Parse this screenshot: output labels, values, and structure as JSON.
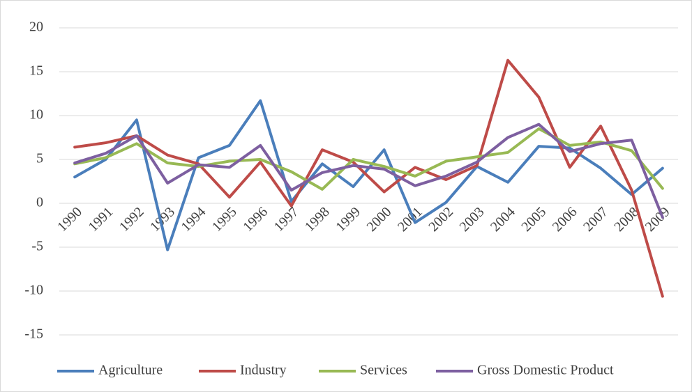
{
  "chart_data": {
    "type": "line",
    "categories": [
      "1990",
      "1991",
      "1992",
      "1993",
      "1994",
      "1995",
      "1996",
      "1997",
      "1998",
      "1999",
      "2000",
      "2001",
      "2002",
      "2003",
      "2004",
      "2005",
      "2006",
      "2007",
      "2008",
      "2009"
    ],
    "series": [
      {
        "name": "Agriculture",
        "color": "#4a7ebb",
        "values": [
          3.0,
          5.0,
          9.5,
          -5.3,
          5.2,
          6.6,
          11.7,
          0.2,
          4.5,
          1.9,
          6.1,
          -2.2,
          0.1,
          4.2,
          2.4,
          6.5,
          6.3,
          4.0,
          1.0,
          4.0
        ]
      },
      {
        "name": "Industry",
        "color": "#be4b48",
        "values": [
          6.4,
          6.9,
          7.7,
          5.5,
          4.5,
          0.7,
          4.7,
          -0.3,
          6.1,
          4.7,
          1.3,
          4.1,
          2.7,
          4.3,
          16.3,
          12.1,
          4.1,
          8.8,
          1.5,
          -10.6
        ]
      },
      {
        "name": "Services",
        "color": "#98b954",
        "values": [
          4.5,
          5.2,
          6.8,
          4.6,
          4.2,
          4.8,
          5.0,
          3.6,
          1.6,
          5.0,
          4.2,
          3.1,
          4.8,
          5.3,
          5.8,
          8.5,
          6.6,
          7.0,
          6.0,
          1.7
        ]
      },
      {
        "name": "Gross Domestic Product",
        "color": "#7d5fa0",
        "values": [
          4.6,
          5.7,
          7.7,
          2.3,
          4.4,
          4.1,
          6.6,
          1.5,
          3.5,
          4.3,
          3.9,
          2.0,
          3.1,
          4.7,
          7.5,
          9.0,
          5.9,
          6.8,
          7.2,
          -1.6
        ]
      }
    ],
    "ylim": [
      -15,
      20
    ],
    "yticks": [
      -15,
      -10,
      -5,
      0,
      5,
      10,
      15,
      20
    ],
    "grid": true,
    "legend": "bottom"
  }
}
